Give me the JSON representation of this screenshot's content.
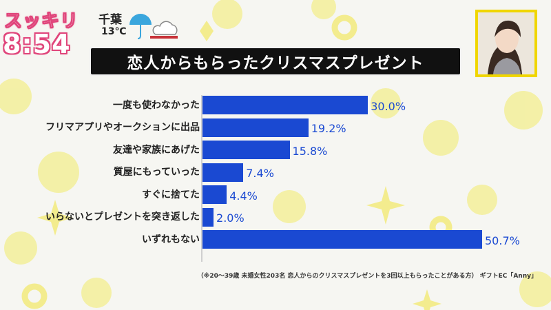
{
  "show": {
    "logo": "スッキリ",
    "clock": "8:54"
  },
  "weather": {
    "city": "千葉",
    "temperature": "13℃",
    "icon": "umbrella-cloud-icon"
  },
  "title": "恋人からもらったクリスマスプレゼント",
  "colors": {
    "bar": "#1a49d2",
    "title_bg": "#111111",
    "accent_yellow": "#f0d600",
    "logo_pink": "#e0457b"
  },
  "chart_data": {
    "type": "bar",
    "orientation": "horizontal",
    "categories": [
      "一度も使わなかった",
      "フリマアプリやオークションに出品",
      "友達や家族にあげた",
      "質屋にもっていった",
      "すぐに捨てた",
      "いらないとプレゼントを突き返した",
      "いずれもない"
    ],
    "values": [
      30.0,
      19.2,
      15.8,
      7.4,
      4.4,
      2.0,
      50.7
    ],
    "value_labels": [
      "30.0%",
      "19.2%",
      "15.8%",
      "7.4%",
      "4.4%",
      "2.0%",
      "50.7%"
    ],
    "title": "恋人からもらったクリスマスプレゼント",
    "xlim": [
      0,
      50.7
    ],
    "grid": false,
    "legend": "none"
  },
  "footnote": "（※20～39歳 未婚女性203名 恋人からのクリスマスプレゼントを3回以上もらったことがある方） ギフトEC「Anny」"
}
